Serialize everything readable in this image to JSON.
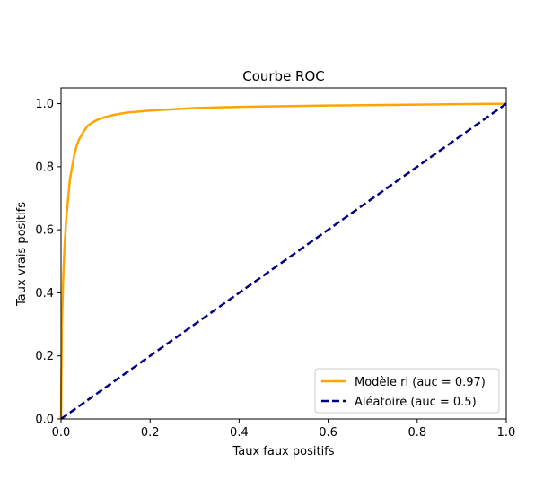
{
  "chart_data": {
    "type": "line",
    "title": "Courbe ROC",
    "xlabel": "Taux faux positifs",
    "ylabel": "Taux vrais positifs",
    "xlim": [
      0.0,
      1.0
    ],
    "ylim": [
      0.0,
      1.05
    ],
    "xticks": [
      0.0,
      0.2,
      0.4,
      0.6,
      0.8,
      1.0
    ],
    "yticks": [
      0.0,
      0.2,
      0.4,
      0.6,
      0.8,
      1.0
    ],
    "xtick_labels": [
      "0.0",
      "0.2",
      "0.4",
      "0.6",
      "0.8",
      "1.0"
    ],
    "ytick_labels": [
      "0.0",
      "0.2",
      "0.4",
      "0.6",
      "0.8",
      "1.0"
    ],
    "grid": false,
    "legend_position": "lower-right",
    "series": [
      {
        "name": "Modèle rl (auc = 0.97)",
        "color": "#ffa500",
        "line_style": "solid",
        "x": [
          0.0,
          0.002,
          0.005,
          0.008,
          0.012,
          0.016,
          0.02,
          0.025,
          0.03,
          0.035,
          0.04,
          0.05,
          0.06,
          0.07,
          0.08,
          0.1,
          0.12,
          0.15,
          0.2,
          0.3,
          0.4,
          0.6,
          0.8,
          1.0
        ],
        "y": [
          0.0,
          0.3,
          0.45,
          0.55,
          0.64,
          0.7,
          0.76,
          0.8,
          0.84,
          0.865,
          0.885,
          0.91,
          0.93,
          0.94,
          0.948,
          0.958,
          0.965,
          0.972,
          0.978,
          0.986,
          0.99,
          0.994,
          0.997,
          1.0
        ]
      },
      {
        "name": "Aléatoire (auc = 0.5)",
        "color": "#000080",
        "line_style": "dashed",
        "x": [
          0.0,
          1.0
        ],
        "y": [
          0.0,
          1.0
        ]
      }
    ]
  }
}
